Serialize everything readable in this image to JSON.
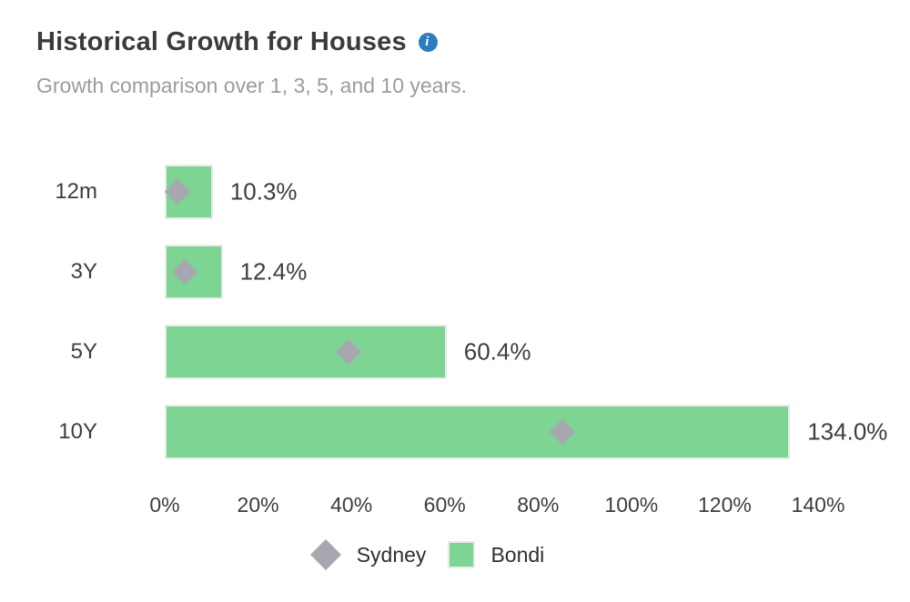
{
  "header": {
    "title": "Historical Growth for Houses",
    "subtitle": "Growth comparison over 1, 3, 5, and 10 years.",
    "info_icon": "info-icon",
    "info_glyph": "i"
  },
  "colors": {
    "bondi_green": "#7ed492",
    "sydney_gray": "#a7a7af",
    "bar_border": "#e8eae8",
    "info_blue": "#2d7cc0",
    "title_text": "#3b3b3b",
    "subtitle_text": "#9b9b9b",
    "label_text": "#3d3d3d"
  },
  "chart_data": {
    "type": "bar",
    "orientation": "horizontal",
    "title": "Historical Growth for Houses",
    "subtitle": "Growth comparison over 1, 3, 5, and 10 years.",
    "categories": [
      "12m",
      "3Y",
      "5Y",
      "10Y"
    ],
    "series": [
      {
        "name": "Sydney",
        "marker": "diamond",
        "color": "#a7a7af",
        "values": [
          2.7,
          4.2,
          39.4,
          85.3
        ]
      },
      {
        "name": "Bondi",
        "marker": "bar",
        "color": "#7ed492",
        "values": [
          10.3,
          12.4,
          60.4,
          134.0
        ]
      }
    ],
    "bar_labels": [
      "10.3%",
      "12.4%",
      "60.4%",
      "134.0%"
    ],
    "xlim": [
      0,
      140
    ],
    "x_tick_values": [
      0,
      20,
      40,
      60,
      80,
      100,
      120,
      140
    ],
    "x_ticks": [
      "0%",
      "20%",
      "40%",
      "60%",
      "80%",
      "100%",
      "120%",
      "140%"
    ],
    "grid": false,
    "legend_position": "bottom",
    "legend": [
      {
        "label": "Sydney",
        "swatch": "diamond"
      },
      {
        "label": "Bondi",
        "swatch": "square"
      }
    ]
  }
}
